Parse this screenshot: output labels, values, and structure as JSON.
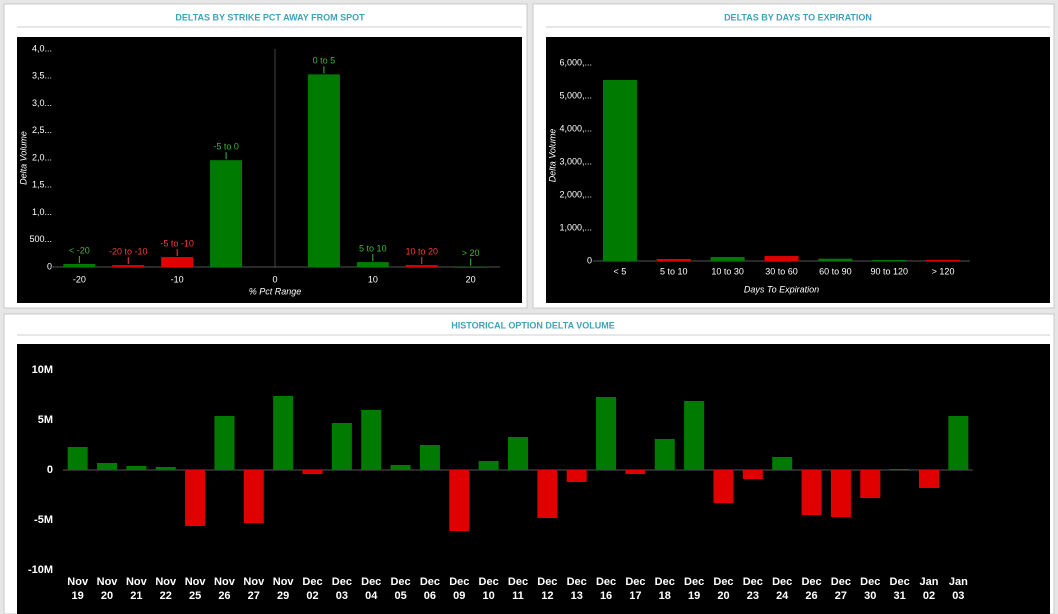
{
  "chart_data": [
    {
      "type": "bar",
      "title": "DELTAS BY STRIKE PCT AWAY FROM SPOT",
      "x_label": "% Pct Range",
      "y_label": "Delta Volume",
      "x": [
        -20,
        -15,
        -10,
        -5,
        5,
        10,
        15,
        20
      ],
      "bar_labels": [
        "< -20",
        "-20 to -10",
        "-5 to -10",
        "-5 to 0",
        "0 to 5",
        "5 to 10",
        "10 to 20",
        "> 20"
      ],
      "values": [
        55,
        35,
        183,
        1960,
        3535,
        90,
        35,
        5
      ],
      "colors": [
        "#007a00",
        "#e00000",
        "#e00000",
        "#007a00",
        "#007a00",
        "#007a00",
        "#e00000",
        "#007a00"
      ],
      "label_colors": [
        "#3cb83c",
        "#ff3a3a",
        "#ff3a3a",
        "#3cb83c",
        "#3cb83c",
        "#3cb83c",
        "#ff3a3a",
        "#3cb83c"
      ],
      "xlim": [
        -23,
        23
      ],
      "xticks": [
        -20,
        -10,
        0,
        10,
        20
      ],
      "ylim": [
        0,
        4000
      ],
      "yticks": [
        0,
        {
          "value": 500,
          "label": "500..."
        },
        {
          "value": 1000,
          "label": "1,0..."
        },
        {
          "value": 1500,
          "label": "1,5..."
        },
        {
          "value": 2000,
          "label": "2,0..."
        },
        {
          "value": 2500,
          "label": "2,5..."
        },
        {
          "value": 3000,
          "label": "3,0..."
        },
        {
          "value": 3500,
          "label": "3,5..."
        },
        {
          "value": 4000,
          "label": "4,0..."
        }
      ]
    },
    {
      "type": "bar",
      "title": "DELTAS BY DAYS TO EXPIRATION",
      "x_label": "Days To Expiration",
      "y_label": "Delta Volume",
      "categories": [
        "< 5",
        "5 to 10",
        "10 to 30",
        "30 to 60",
        "60 to 90",
        "90 to 120",
        "> 120"
      ],
      "values": [
        5485,
        60,
        120,
        150,
        70,
        30,
        30
      ],
      "colors": [
        "#007a00",
        "#e00000",
        "#007a00",
        "#e00000",
        "#007a00",
        "#007a00",
        "#e00000"
      ],
      "ylim": [
        0,
        6400
      ],
      "yticks": [
        0,
        {
          "value": 1000,
          "label": "1,000,..."
        },
        {
          "value": 2000,
          "label": "2,000,..."
        },
        {
          "value": 3000,
          "label": "3,000,..."
        },
        {
          "value": 4000,
          "label": "4,000,..."
        },
        {
          "value": 5000,
          "label": "5,000,..."
        },
        {
          "value": 6000,
          "label": "6,000,..."
        }
      ]
    },
    {
      "type": "bar",
      "title": "HISTORICAL OPTION DELTA VOLUME",
      "categories": [
        [
          "Nov",
          "19"
        ],
        [
          "Nov",
          "20"
        ],
        [
          "Nov",
          "21"
        ],
        [
          "Nov",
          "22"
        ],
        [
          "Nov",
          "25"
        ],
        [
          "Nov",
          "26"
        ],
        [
          "Nov",
          "27"
        ],
        [
          "Nov",
          "29"
        ],
        [
          "Dec",
          "02"
        ],
        [
          "Dec",
          "03"
        ],
        [
          "Dec",
          "04"
        ],
        [
          "Dec",
          "05"
        ],
        [
          "Dec",
          "06"
        ],
        [
          "Dec",
          "09"
        ],
        [
          "Dec",
          "10"
        ],
        [
          "Dec",
          "11"
        ],
        [
          "Dec",
          "12"
        ],
        [
          "Dec",
          "13"
        ],
        [
          "Dec",
          "16"
        ],
        [
          "Dec",
          "17"
        ],
        [
          "Dec",
          "18"
        ],
        [
          "Dec",
          "19"
        ],
        [
          "Dec",
          "20"
        ],
        [
          "Dec",
          "23"
        ],
        [
          "Dec",
          "24"
        ],
        [
          "Dec",
          "26"
        ],
        [
          "Dec",
          "27"
        ],
        [
          "Dec",
          "30"
        ],
        [
          "Dec",
          "31"
        ],
        [
          "Jan",
          "02"
        ],
        [
          "Jan",
          "03"
        ]
      ],
      "values": [
        2300000,
        700000,
        400000,
        300000,
        -5600000,
        5400000,
        -5300000,
        7400000,
        -400000,
        4700000,
        6000000,
        500000,
        2500000,
        -6100000,
        900000,
        3300000,
        -4800000,
        -1200000,
        7300000,
        -400000,
        3100000,
        6900000,
        -3300000,
        -900000,
        1300000,
        -4500000,
        -4700000,
        -2800000,
        100000,
        -1800000,
        5400000
      ],
      "positive_color": "#007a00",
      "negative_color": "#e00000",
      "ylim": [
        -12000000,
        12000000
      ],
      "yticks": [
        {
          "value": -10000000,
          "label": "-10M"
        },
        {
          "value": -5000000,
          "label": "-5M"
        },
        0,
        {
          "value": 5000000,
          "label": "5M"
        },
        {
          "value": 10000000,
          "label": "10M"
        }
      ]
    }
  ]
}
